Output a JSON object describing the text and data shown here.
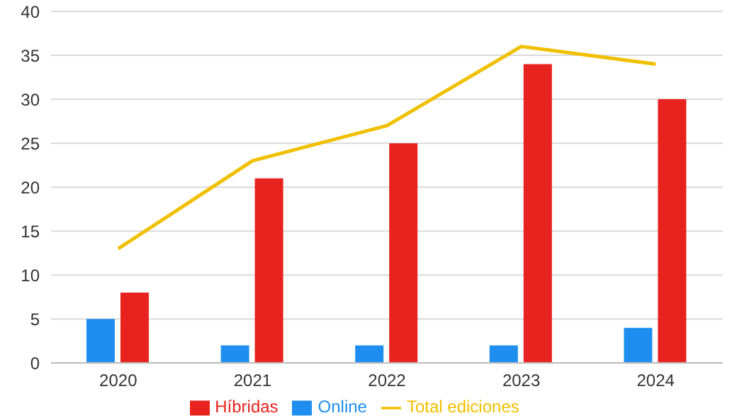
{
  "chart_data": {
    "type": "bar",
    "categories": [
      "2020",
      "2021",
      "2022",
      "2023",
      "2024"
    ],
    "series": [
      {
        "name": "Online",
        "color": "#1e8ff0",
        "values": [
          5,
          2,
          2,
          2,
          4
        ]
      },
      {
        "name": "Híbridas",
        "color": "#e8231f",
        "values": [
          8,
          21,
          25,
          34,
          30
        ]
      },
      {
        "name": "Total ediciones",
        "type": "line",
        "color": "#f0c000",
        "values": [
          13,
          23,
          27,
          36,
          34
        ]
      }
    ],
    "ylim": [
      0,
      40
    ],
    "yticks": [
      0,
      5,
      10,
      15,
      20,
      25,
      30,
      35,
      40
    ],
    "grid": "y",
    "legend": "bottom",
    "marker": "none"
  }
}
